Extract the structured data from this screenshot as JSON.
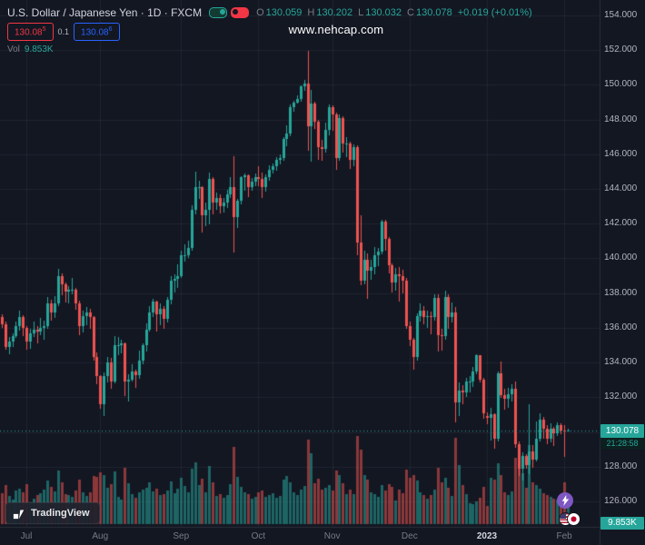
{
  "header": {
    "title": "U.S. Dollar / Japanese Yen · 1D · FXCM",
    "ohlc": {
      "o_label": "O",
      "o_value": "130.059",
      "h_label": "H",
      "h_value": "130.202",
      "l_label": "L",
      "l_value": "130.032",
      "c_label": "C",
      "c_value": "130.078",
      "change": "+0.019 (+0.01%)"
    },
    "sell_button": {
      "price": "130.08",
      "sup": "5"
    },
    "spread": "0.1",
    "buy_button": {
      "price": "130.08",
      "sup": "6"
    },
    "vol_label": "Vol",
    "vol_value": "9.853K"
  },
  "watermark": "www.nehcap.com",
  "logo_text": "TradingView",
  "price_scale": {
    "labels": [
      "154.000",
      "152.000",
      "150.000",
      "148.000",
      "146.000",
      "144.000",
      "142.000",
      "140.000",
      "138.000",
      "136.000",
      "134.000",
      "132.000",
      "130.000",
      "128.000",
      "126.000"
    ]
  },
  "colors": {
    "background": "#131722",
    "up": "#26a69a",
    "down": "#ef5350",
    "sell_red": "#f23645",
    "buy_blue": "#2962ff",
    "text": "#d1d4dc",
    "muted": "#787b86",
    "axis_text": "#b2b5be",
    "grid": "rgba(255,255,255,0.06)",
    "axis_line": "#2a2e39",
    "countdown_bg": "#0d1f1e",
    "purple": "#7e57c2"
  },
  "chart_data": {
    "type": "candlestick",
    "title": "U.S. Dollar / Japanese Yen",
    "interval": "1D",
    "exchange": "FXCM",
    "ylim": [
      126,
      154
    ],
    "grid": true,
    "candles_format": [
      "open",
      "high",
      "low",
      "close",
      "volume"
    ],
    "last": {
      "open": 130.059,
      "high": 130.202,
      "low": 130.032,
      "close": 130.078,
      "close_label": "130.078",
      "change": "+0.019 (+0.01%)",
      "countdown": "21:28:58",
      "volume_label": "9.853K"
    },
    "month_ticks": [
      {
        "i": 7,
        "label": "Jul"
      },
      {
        "i": 28,
        "label": "Aug"
      },
      {
        "i": 51,
        "label": "Sep"
      },
      {
        "i": 73,
        "label": "Oct"
      },
      {
        "i": 94,
        "label": "Nov"
      },
      {
        "i": 116,
        "label": "Dec"
      },
      {
        "i": 138,
        "label": "2023",
        "strong": true
      },
      {
        "i": 160,
        "label": "Feb"
      }
    ],
    "candles": [
      [
        136.6,
        136.8,
        136.0,
        136.2,
        12400
      ],
      [
        136.2,
        136.35,
        134.75,
        134.9,
        15800
      ],
      [
        134.9,
        135.45,
        134.5,
        135.2,
        11200
      ],
      [
        135.2,
        135.7,
        134.9,
        135.5,
        9800
      ],
      [
        135.5,
        136.35,
        135.4,
        136.1,
        13500
      ],
      [
        136.1,
        137.0,
        135.85,
        136.6,
        14100
      ],
      [
        136.6,
        136.75,
        135.55,
        136.0,
        12700
      ],
      [
        136.0,
        136.1,
        134.75,
        135.2,
        16200
      ],
      [
        135.2,
        135.95,
        134.8,
        135.7,
        8900
      ],
      [
        135.7,
        136.35,
        135.45,
        135.9,
        10400
      ],
      [
        135.9,
        136.1,
        135.1,
        135.8,
        11800
      ],
      [
        135.8,
        136.55,
        135.6,
        136.0,
        12300
      ],
      [
        136.0,
        136.4,
        135.3,
        136.1,
        13900
      ],
      [
        136.1,
        137.75,
        135.95,
        137.4,
        17600
      ],
      [
        137.4,
        137.6,
        136.4,
        136.9,
        14800
      ],
      [
        136.9,
        137.85,
        136.55,
        137.4,
        13200
      ],
      [
        137.4,
        139.4,
        137.25,
        139.0,
        21500
      ],
      [
        139.0,
        139.15,
        137.9,
        138.5,
        16700
      ],
      [
        138.5,
        138.6,
        137.45,
        138.1,
        12100
      ],
      [
        138.1,
        138.4,
        137.4,
        138.2,
        11600
      ],
      [
        138.2,
        138.9,
        137.95,
        138.2,
        10900
      ],
      [
        138.2,
        138.3,
        137.05,
        137.4,
        13400
      ],
      [
        137.4,
        137.55,
        135.6,
        136.1,
        17800
      ],
      [
        136.1,
        137.0,
        135.75,
        136.7,
        12800
      ],
      [
        136.7,
        137.2,
        136.15,
        136.9,
        11300
      ],
      [
        136.9,
        137.1,
        135.95,
        136.6,
        12600
      ],
      [
        136.6,
        136.7,
        134.1,
        134.3,
        19400
      ],
      [
        134.3,
        134.6,
        132.75,
        133.2,
        18900
      ],
      [
        133.2,
        133.3,
        131.35,
        131.6,
        20700
      ],
      [
        131.6,
        133.45,
        130.9,
        133.2,
        19800
      ],
      [
        133.2,
        134.3,
        132.85,
        134.0,
        14700
      ],
      [
        134.0,
        134.25,
        132.5,
        132.9,
        15900
      ],
      [
        132.9,
        135.5,
        132.8,
        135.0,
        21300
      ],
      [
        135.0,
        135.45,
        134.4,
        135.0,
        10800
      ],
      [
        135.0,
        135.3,
        134.55,
        135.1,
        9700
      ],
      [
        135.1,
        135.15,
        132.05,
        132.9,
        22600
      ],
      [
        132.9,
        133.35,
        131.75,
        133.0,
        16400
      ],
      [
        133.0,
        133.9,
        132.9,
        133.5,
        11900
      ],
      [
        133.5,
        133.6,
        132.55,
        133.3,
        10600
      ],
      [
        133.3,
        134.7,
        133.05,
        134.1,
        12900
      ],
      [
        134.1,
        135.1,
        133.9,
        135.0,
        13800
      ],
      [
        135.0,
        136.25,
        134.65,
        135.9,
        14600
      ],
      [
        135.9,
        137.25,
        135.8,
        136.9,
        16800
      ],
      [
        136.9,
        137.65,
        136.65,
        137.5,
        13100
      ],
      [
        137.5,
        137.55,
        135.8,
        136.8,
        14400
      ],
      [
        136.8,
        137.4,
        136.15,
        137.1,
        11700
      ],
      [
        137.1,
        137.25,
        135.95,
        136.5,
        12200
      ],
      [
        136.5,
        137.75,
        136.3,
        137.6,
        13600
      ],
      [
        137.6,
        139.0,
        137.35,
        138.7,
        17300
      ],
      [
        138.7,
        139.1,
        138.05,
        138.8,
        12500
      ],
      [
        138.8,
        139.65,
        138.3,
        139.0,
        14200
      ],
      [
        139.0,
        140.45,
        138.85,
        140.2,
        18700
      ],
      [
        140.2,
        140.8,
        139.8,
        140.2,
        15300
      ],
      [
        140.2,
        141.0,
        140.05,
        140.6,
        12800
      ],
      [
        140.6,
        143.05,
        140.45,
        142.8,
        22100
      ],
      [
        142.8,
        144.99,
        142.55,
        144.1,
        24800
      ],
      [
        144.1,
        144.45,
        143.45,
        144.1,
        15600
      ],
      [
        144.1,
        144.15,
        141.5,
        142.5,
        18300
      ],
      [
        142.5,
        143.2,
        141.85,
        142.8,
        12700
      ],
      [
        142.8,
        144.95,
        141.95,
        144.6,
        23400
      ],
      [
        144.6,
        144.7,
        142.55,
        143.2,
        16900
      ],
      [
        143.2,
        143.8,
        142.8,
        143.5,
        11400
      ],
      [
        143.5,
        143.7,
        142.6,
        143.0,
        12000
      ],
      [
        143.0,
        143.5,
        142.65,
        143.2,
        10500
      ],
      [
        143.2,
        143.95,
        142.9,
        143.7,
        11800
      ],
      [
        143.7,
        144.7,
        143.5,
        144.1,
        16100
      ],
      [
        144.1,
        145.9,
        140.35,
        142.4,
        31200
      ],
      [
        142.4,
        143.45,
        141.75,
        143.3,
        18800
      ],
      [
        143.3,
        144.75,
        143.1,
        144.7,
        14900
      ],
      [
        144.7,
        144.9,
        143.9,
        144.8,
        12600
      ],
      [
        144.8,
        144.85,
        143.55,
        144.1,
        11900
      ],
      [
        144.1,
        144.65,
        143.9,
        144.4,
        10200
      ],
      [
        144.4,
        144.9,
        144.15,
        144.7,
        11100
      ],
      [
        144.7,
        145.3,
        144.15,
        144.6,
        12800
      ],
      [
        144.6,
        144.95,
        143.5,
        144.1,
        13500
      ],
      [
        144.1,
        144.85,
        143.85,
        144.7,
        10900
      ],
      [
        144.7,
        145.35,
        144.5,
        145.1,
        11600
      ],
      [
        145.1,
        145.45,
        144.9,
        145.3,
        12400
      ],
      [
        145.3,
        145.85,
        145.05,
        145.7,
        10700
      ],
      [
        145.7,
        146.0,
        145.4,
        145.8,
        11300
      ],
      [
        145.8,
        146.98,
        145.65,
        146.9,
        17800
      ],
      [
        146.9,
        147.65,
        146.45,
        147.2,
        19200
      ],
      [
        147.2,
        148.86,
        147.05,
        148.7,
        16800
      ],
      [
        148.7,
        149.1,
        148.45,
        149.0,
        12900
      ],
      [
        149.0,
        149.39,
        148.9,
        149.2,
        11800
      ],
      [
        149.2,
        149.97,
        149.05,
        149.9,
        13700
      ],
      [
        149.9,
        150.29,
        149.65,
        150.1,
        15400
      ],
      [
        150.1,
        151.94,
        146.2,
        147.6,
        33800
      ],
      [
        147.6,
        149.7,
        145.55,
        148.9,
        28600
      ],
      [
        148.9,
        149.05,
        147.45,
        147.9,
        16300
      ],
      [
        147.9,
        148.0,
        145.7,
        146.4,
        18100
      ],
      [
        146.4,
        146.85,
        145.6,
        146.3,
        13900
      ],
      [
        146.3,
        147.85,
        146.1,
        147.4,
        14700
      ],
      [
        147.4,
        148.85,
        147.1,
        148.7,
        15800
      ],
      [
        148.7,
        148.8,
        147.35,
        148.3,
        13400
      ],
      [
        148.3,
        148.4,
        145.1,
        145.8,
        21600
      ],
      [
        145.8,
        148.3,
        145.65,
        148.1,
        19700
      ],
      [
        148.1,
        148.2,
        146.1,
        146.6,
        16500
      ],
      [
        146.6,
        147.0,
        145.85,
        146.6,
        12200
      ],
      [
        146.6,
        146.75,
        145.15,
        145.7,
        13800
      ],
      [
        145.7,
        146.55,
        145.3,
        146.4,
        12100
      ],
      [
        146.4,
        146.5,
        140.2,
        140.9,
        35400
      ],
      [
        140.9,
        142.5,
        138.45,
        138.7,
        29800
      ],
      [
        138.7,
        140.45,
        138.5,
        139.9,
        19600
      ],
      [
        139.9,
        140.3,
        137.65,
        139.3,
        17900
      ],
      [
        139.3,
        139.9,
        138.75,
        139.5,
        12800
      ],
      [
        139.5,
        140.65,
        139.1,
        140.2,
        11900
      ],
      [
        140.2,
        140.6,
        139.55,
        140.4,
        10800
      ],
      [
        140.4,
        142.25,
        140.25,
        142.1,
        15700
      ],
      [
        142.1,
        142.2,
        140.45,
        141.1,
        13600
      ],
      [
        141.1,
        141.25,
        139.15,
        139.6,
        16200
      ],
      [
        139.6,
        139.7,
        138.05,
        138.6,
        14900
      ],
      [
        138.6,
        139.45,
        138.15,
        139.1,
        9600
      ],
      [
        139.1,
        139.5,
        137.5,
        139.0,
        13700
      ],
      [
        139.0,
        139.35,
        138.0,
        138.7,
        12400
      ],
      [
        138.7,
        138.85,
        135.95,
        136.1,
        21800
      ],
      [
        136.1,
        136.35,
        134.95,
        135.3,
        18600
      ],
      [
        135.3,
        135.4,
        133.6,
        134.3,
        19800
      ],
      [
        134.3,
        136.85,
        134.1,
        136.7,
        17400
      ],
      [
        136.7,
        137.4,
        136.35,
        137.0,
        12600
      ],
      [
        137.0,
        137.25,
        136.2,
        136.6,
        11800
      ],
      [
        136.6,
        137.0,
        136.0,
        136.7,
        10400
      ],
      [
        136.7,
        136.95,
        135.65,
        136.6,
        11700
      ],
      [
        136.6,
        137.95,
        136.4,
        137.7,
        13900
      ],
      [
        137.7,
        137.95,
        134.65,
        135.6,
        22700
      ],
      [
        135.6,
        135.95,
        134.7,
        135.5,
        16800
      ],
      [
        135.5,
        138.15,
        135.3,
        137.8,
        18500
      ],
      [
        137.8,
        137.95,
        135.95,
        136.6,
        14600
      ],
      [
        136.6,
        137.45,
        136.3,
        136.9,
        11200
      ],
      [
        136.9,
        137.2,
        130.57,
        131.7,
        34600
      ],
      [
        131.7,
        132.85,
        130.9,
        132.4,
        23800
      ],
      [
        132.4,
        132.7,
        131.6,
        132.3,
        15700
      ],
      [
        132.3,
        133.1,
        132.0,
        132.9,
        11900
      ],
      [
        132.9,
        133.2,
        132.3,
        132.9,
        8400
      ],
      [
        132.9,
        133.75,
        132.6,
        133.5,
        7900
      ],
      [
        133.5,
        134.5,
        133.35,
        134.4,
        9300
      ],
      [
        134.4,
        134.45,
        132.85,
        133.0,
        10700
      ],
      [
        133.0,
        133.1,
        130.75,
        131.1,
        14800
      ],
      [
        130.9,
        131.15,
        130.45,
        130.8,
        7200
      ],
      [
        130.8,
        131.4,
        129.52,
        131.0,
        18700
      ],
      [
        131.0,
        131.1,
        129.05,
        129.6,
        17900
      ],
      [
        129.6,
        133.5,
        129.45,
        133.4,
        24300
      ],
      [
        133.4,
        134.05,
        131.95,
        132.1,
        19600
      ],
      [
        132.1,
        132.5,
        131.3,
        131.9,
        12800
      ],
      [
        131.9,
        132.55,
        131.4,
        132.2,
        11600
      ],
      [
        132.2,
        132.75,
        131.75,
        132.5,
        13200
      ],
      [
        132.5,
        132.9,
        129.1,
        129.3,
        26800
      ],
      [
        129.3,
        129.45,
        127.46,
        127.9,
        23400
      ],
      [
        127.9,
        128.85,
        127.22,
        128.6,
        20600
      ],
      [
        128.6,
        128.7,
        127.9,
        128.1,
        14700
      ],
      [
        128.1,
        131.58,
        127.57,
        128.9,
        31600
      ],
      [
        128.9,
        129.25,
        127.95,
        128.4,
        16900
      ],
      [
        128.4,
        130.6,
        128.3,
        129.6,
        15800
      ],
      [
        129.6,
        131.1,
        129.45,
        130.7,
        14100
      ],
      [
        130.7,
        130.85,
        129.6,
        130.2,
        12300
      ],
      [
        130.2,
        130.4,
        129.3,
        129.6,
        11800
      ],
      [
        129.6,
        130.5,
        129.4,
        130.2,
        10900
      ],
      [
        130.2,
        130.3,
        129.2,
        129.9,
        10200
      ],
      [
        129.9,
        130.55,
        129.75,
        130.4,
        9800
      ],
      [
        130.4,
        130.5,
        129.85,
        130.1,
        11400
      ],
      [
        130.1,
        130.4,
        128.55,
        130.059,
        16700
      ],
      [
        130.059,
        130.202,
        130.032,
        130.078,
        9853
      ]
    ]
  }
}
